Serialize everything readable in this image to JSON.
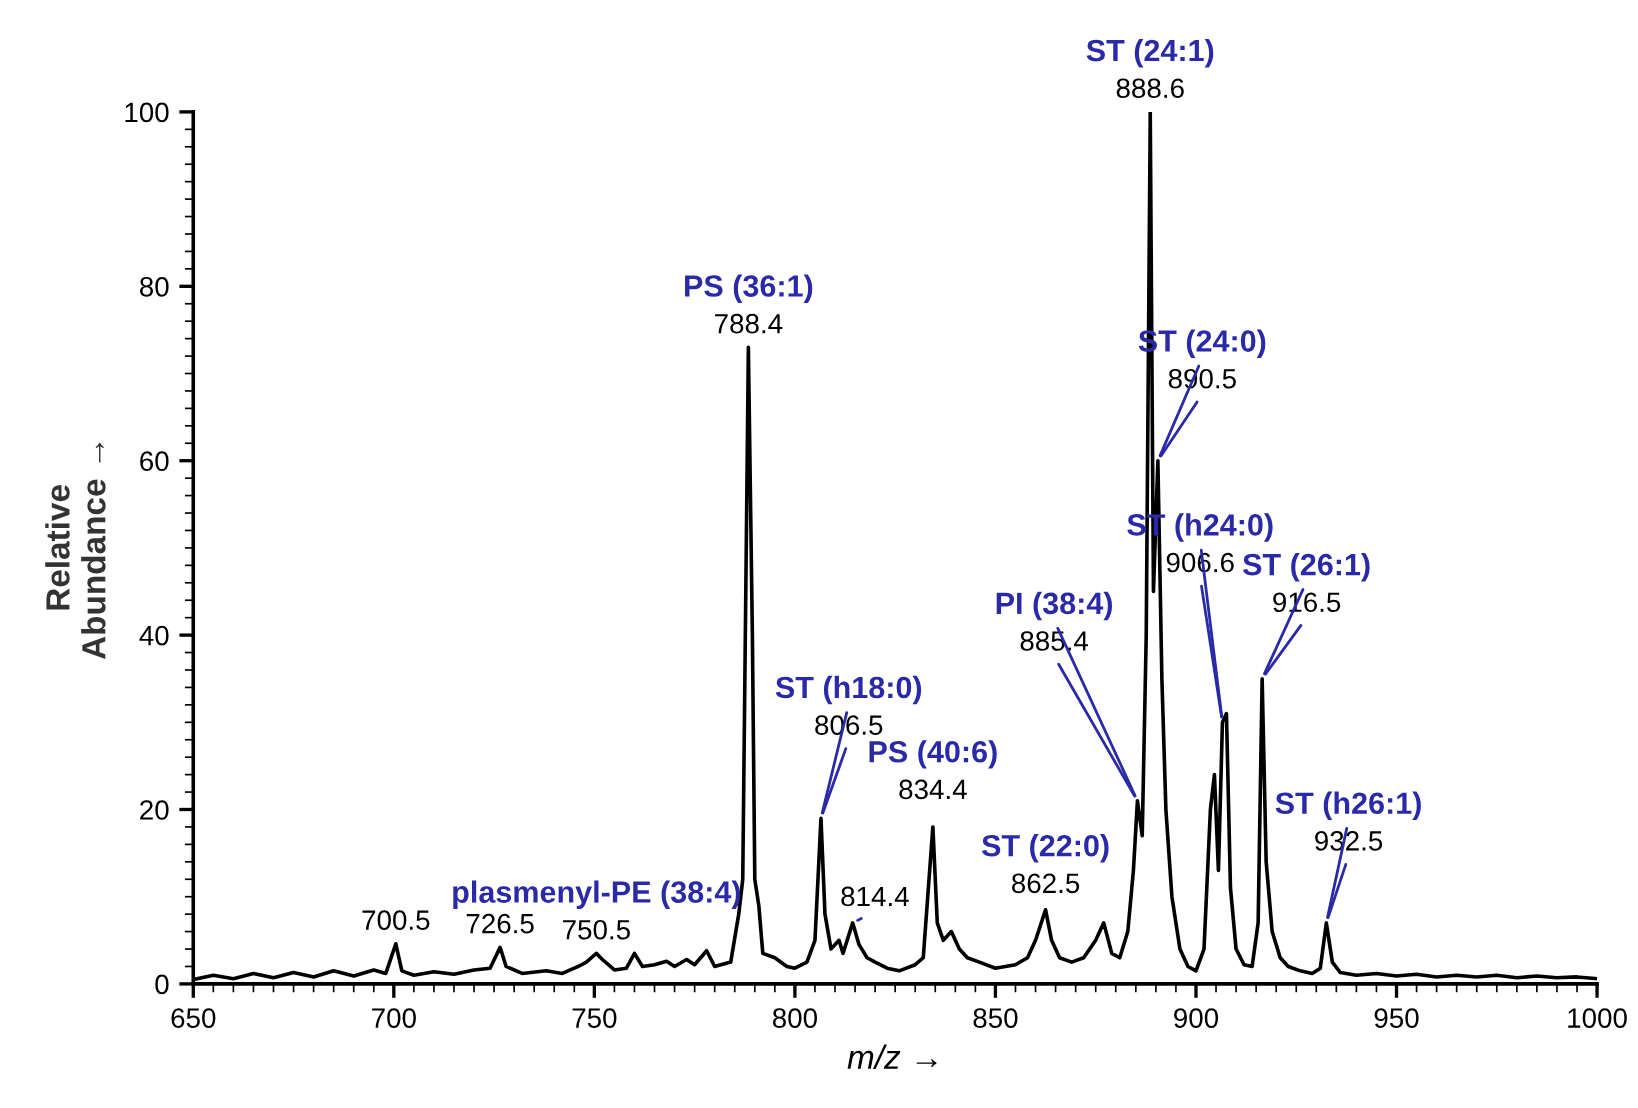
{
  "chart_data": {
    "type": "line",
    "xlabel": "m/z →",
    "ylabel": "Relative\nAbundance →",
    "xlim": [
      650,
      1000
    ],
    "xticks": [
      650,
      700,
      750,
      800,
      850,
      900,
      950,
      1000
    ],
    "ylim": [
      0,
      100
    ],
    "yticks": [
      0,
      20,
      40,
      60,
      80,
      100
    ],
    "grid": false,
    "series": [
      {
        "color": "#000000",
        "x": [
          650,
          655,
          660,
          665,
          670,
          675,
          680,
          685,
          690,
          695,
          698,
          700.5,
          702,
          705,
          710,
          715,
          720,
          724,
          726.5,
          728,
          732,
          738,
          742,
          746,
          748,
          750.5,
          752,
          755,
          758,
          760,
          762,
          765,
          768,
          770,
          773,
          775,
          778,
          780,
          784,
          786,
          787,
          788.4,
          789.4,
          790,
          791,
          792,
          795,
          798,
          800,
          803,
          805,
          806.5,
          807.5,
          809,
          811,
          812,
          814.4,
          816,
          818,
          820,
          823,
          826,
          830,
          832,
          834.4,
          835.5,
          837,
          839,
          841,
          843,
          846,
          850,
          855,
          858,
          860,
          862.5,
          864,
          866,
          869,
          872,
          875,
          877,
          879,
          881,
          883,
          884.4,
          885.4,
          886.6,
          887.6,
          888.6,
          889.4,
          890.5,
          891.5,
          892.5,
          894,
          896,
          898,
          900,
          902,
          903.6,
          904.6,
          905.6,
          906.6,
          907.6,
          908.6,
          910,
          912,
          914,
          915.5,
          916.5,
          917.5,
          919,
          921,
          923,
          926,
          929,
          931,
          932.5,
          934,
          936,
          940,
          945,
          950,
          955,
          960,
          965,
          970,
          975,
          980,
          985,
          990,
          995,
          1000
        ],
        "values": [
          0.5,
          1,
          0.6,
          1.2,
          0.7,
          1.3,
          0.8,
          1.5,
          0.9,
          1.6,
          1.2,
          4.6,
          1.5,
          1.0,
          1.4,
          1.1,
          1.6,
          1.8,
          4.2,
          2.0,
          1.2,
          1.5,
          1.2,
          2.0,
          2.5,
          3.5,
          2.8,
          1.6,
          1.8,
          3.5,
          2.0,
          2.2,
          2.6,
          2.0,
          2.8,
          2.2,
          3.8,
          2.0,
          2.5,
          8,
          12,
          73,
          40,
          12,
          9,
          3.5,
          3.0,
          2.0,
          1.8,
          2.5,
          5,
          19,
          8,
          4,
          5,
          3.5,
          7,
          4.5,
          3,
          2.5,
          1.8,
          1.5,
          2.2,
          3,
          18,
          7,
          5,
          6,
          4,
          3,
          2.5,
          1.8,
          2.2,
          3,
          5,
          8.5,
          5,
          3,
          2.5,
          3,
          5,
          7,
          3.5,
          3,
          6,
          13,
          21,
          17,
          40,
          100,
          45,
          60,
          35,
          20,
          10,
          4,
          2,
          1.5,
          4,
          20,
          24,
          13,
          30,
          31,
          11,
          4,
          2.2,
          2,
          7,
          35,
          14,
          6,
          3,
          2,
          1.5,
          1.2,
          1.8,
          7,
          2.5,
          1.3,
          1.0,
          1.2,
          0.9,
          1.1,
          0.8,
          1.0,
          0.8,
          1.0,
          0.7,
          0.9,
          0.7,
          0.8,
          0.6
        ]
      }
    ],
    "annotations": [
      {
        "text": "888.6",
        "x": 888.6,
        "y": 100
      },
      {
        "text": "ST (24:1)",
        "x": 888.6,
        "y": 100
      },
      {
        "text": "788.4",
        "x": 788.4,
        "y": 73
      },
      {
        "text": "PS (36:1)",
        "x": 788.4,
        "y": 73
      },
      {
        "text": "890.5",
        "x": 890.5,
        "y": 60
      },
      {
        "text": "ST (24:0)",
        "x": 890.5,
        "y": 60
      },
      {
        "text": "916.5",
        "x": 916.5,
        "y": 35
      },
      {
        "text": "ST (26:1)",
        "x": 916.5,
        "y": 35
      },
      {
        "text": "906.6",
        "x": 906.6,
        "y": 30
      },
      {
        "text": "ST (h24:0)",
        "x": 906.6,
        "y": 30
      },
      {
        "text": "885.4",
        "x": 885.4,
        "y": 21
      },
      {
        "text": "PI (38:4)",
        "x": 885.4,
        "y": 21
      },
      {
        "text": "806.5",
        "x": 806.5,
        "y": 19
      },
      {
        "text": "ST (h18:0)",
        "x": 806.5,
        "y": 19
      },
      {
        "text": "834.4",
        "x": 834.4,
        "y": 18
      },
      {
        "text": "PS (40:6)",
        "x": 834.4,
        "y": 18
      },
      {
        "text": "862.5",
        "x": 862.5,
        "y": 8.5
      },
      {
        "text": "ST (22:0)",
        "x": 862.5,
        "y": 8.5
      },
      {
        "text": "932.5",
        "x": 932.5,
        "y": 7
      },
      {
        "text": "ST (h26:1)",
        "x": 932.5,
        "y": 7
      },
      {
        "text": "814.4",
        "x": 814.4,
        "y": 7
      },
      {
        "text": "700.5",
        "x": 700.5,
        "y": 4.6
      },
      {
        "text": "726.5",
        "x": 726.5,
        "y": 4.2
      },
      {
        "text": "750.5",
        "x": 750.5,
        "y": 3.5
      },
      {
        "text": "plasmenyl-PE (38:4)",
        "x": 750.5,
        "y": 3.5
      }
    ]
  }
}
